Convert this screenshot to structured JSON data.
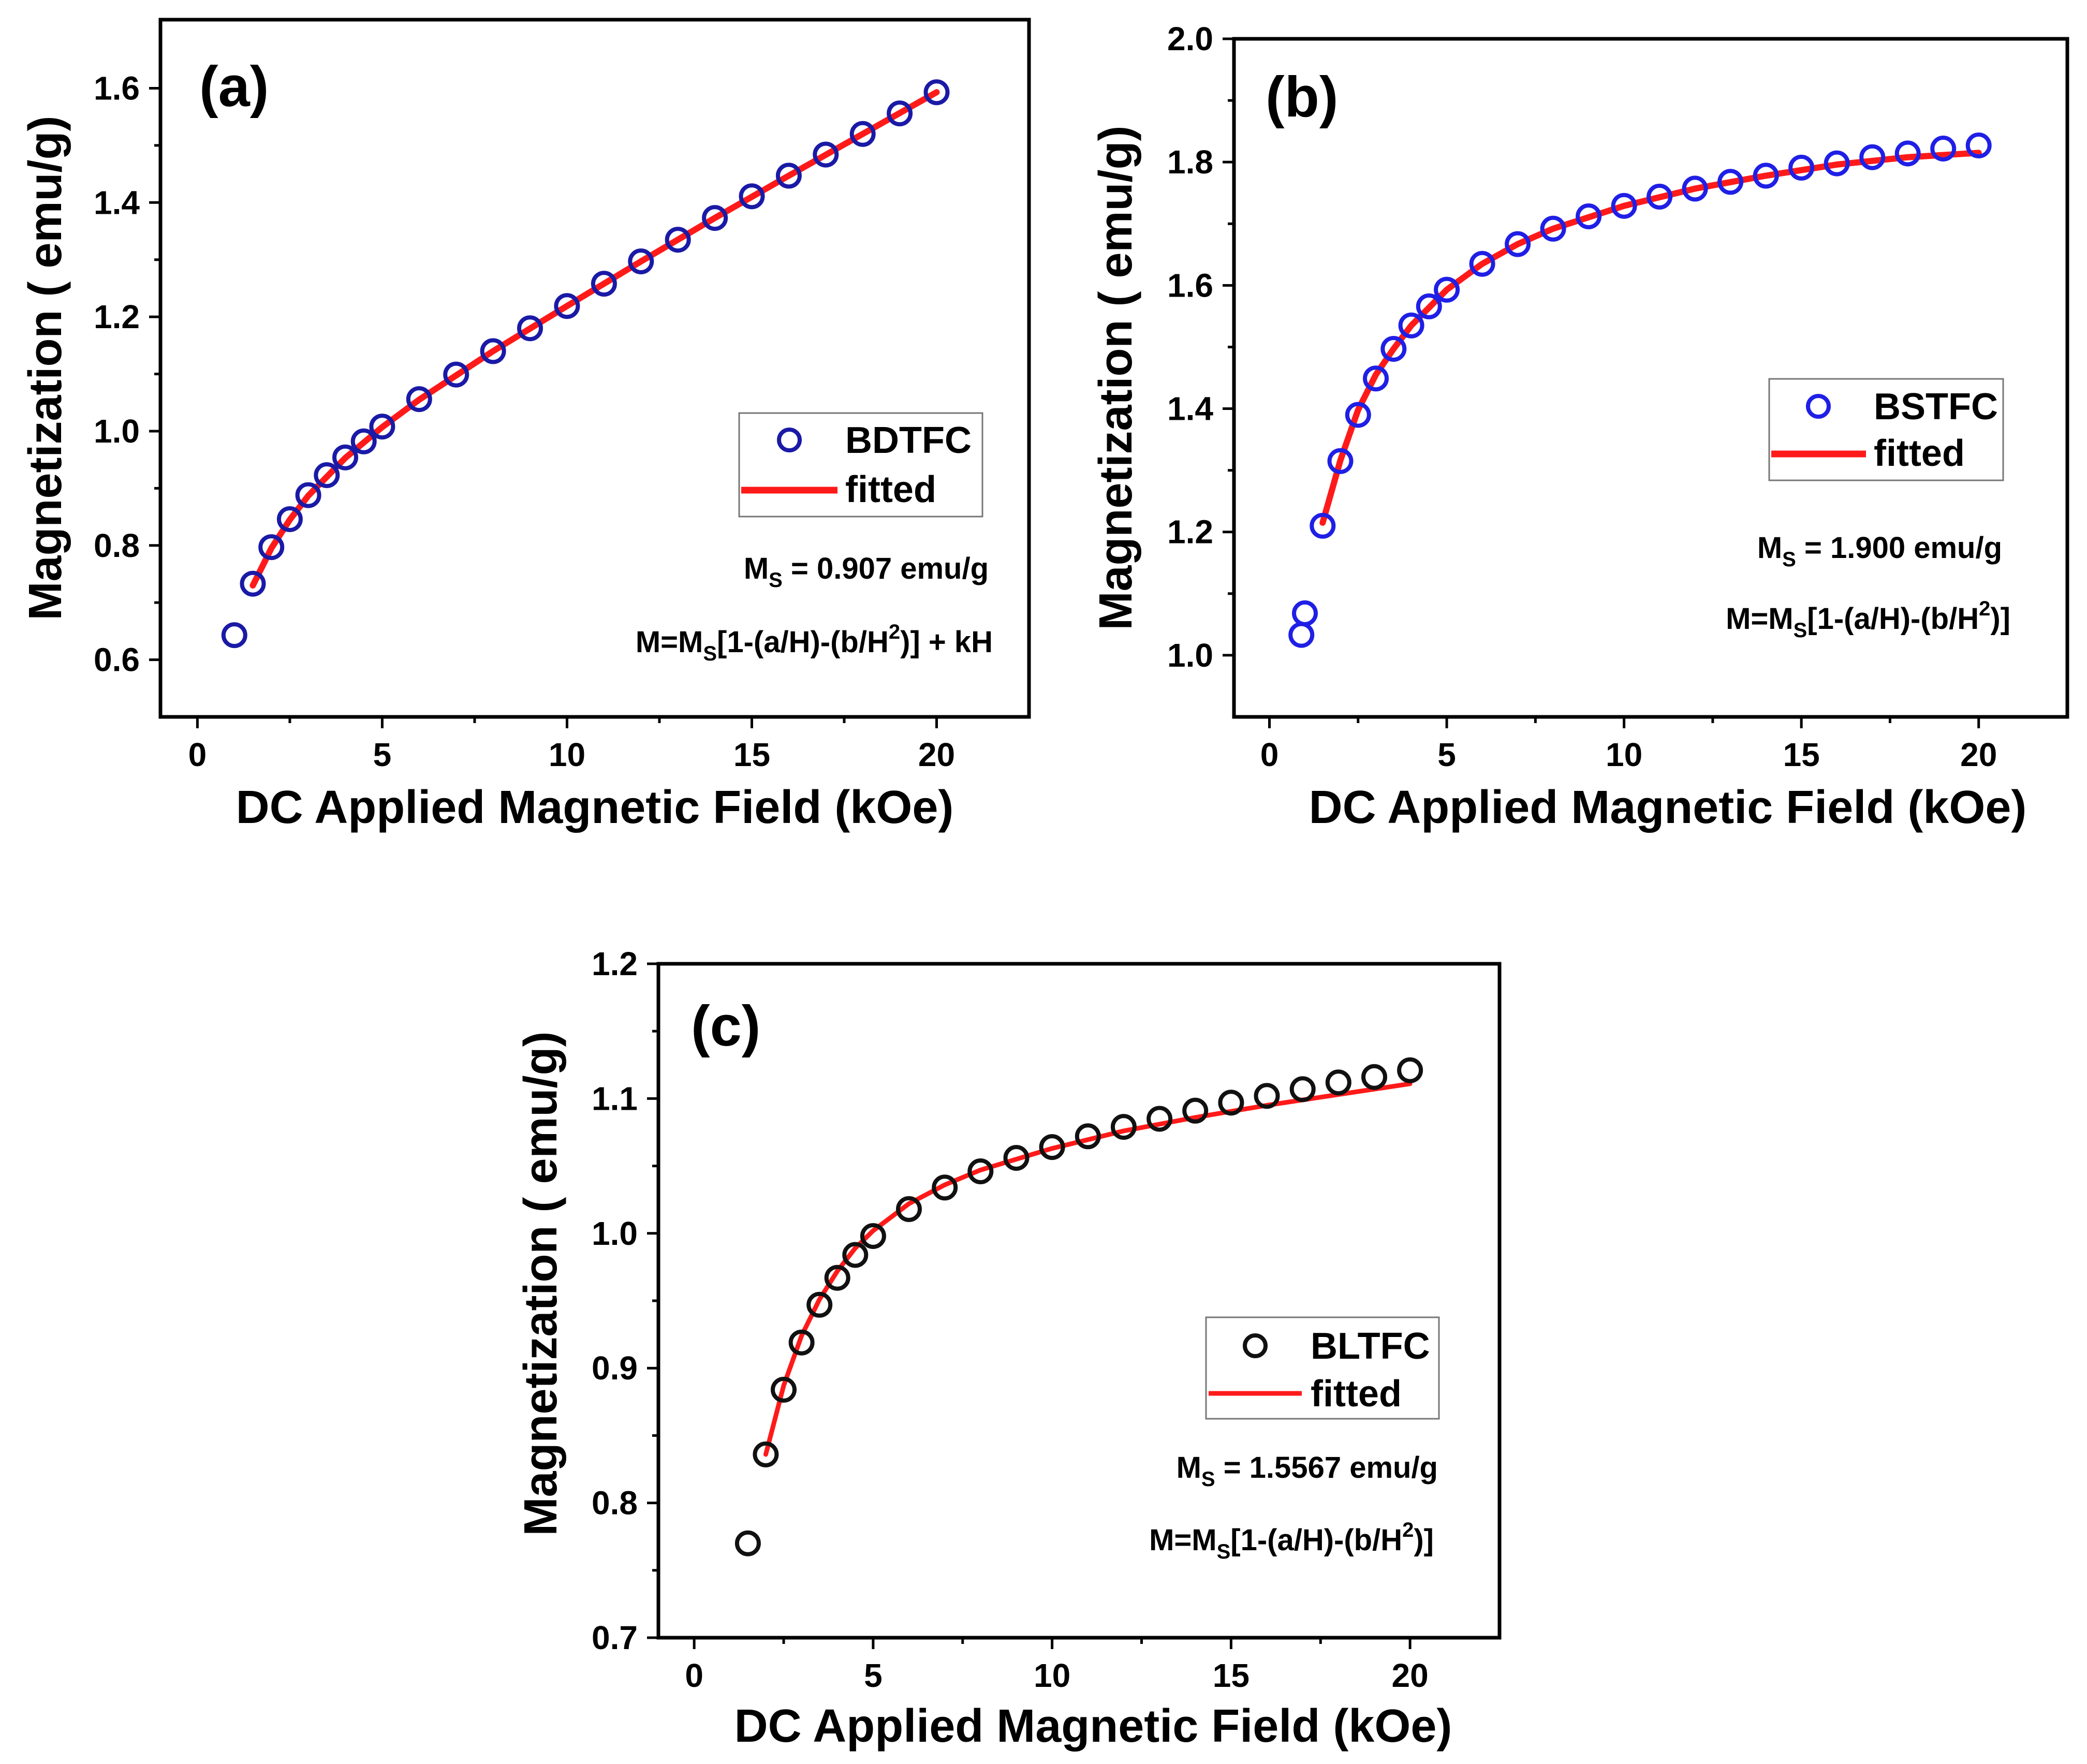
{
  "chart_data": [
    {
      "type": "scatter",
      "panel_label": "(a)",
      "xlabel": "DC Applied Magnetic Field (kOe)",
      "ylabel": "Magnetization ( emu/g)",
      "xlim": [
        -1,
        22.5
      ],
      "ylim": [
        0.5,
        1.72
      ],
      "xticks": [
        0,
        5,
        10,
        15,
        20
      ],
      "xtick_labels": [
        "0",
        "5",
        "10",
        "15",
        "20"
      ],
      "yticks": [
        0.6,
        0.8,
        1.0,
        1.2,
        1.4,
        1.6
      ],
      "ytick_labels": [
        "0.6",
        "0.8",
        "1.0",
        "1.2",
        "1.4",
        "1.6"
      ],
      "marker_color": "#1a1aa6",
      "fit_color": "#ff1a1a",
      "legend": {
        "position": "right",
        "data_label": "BDTFC",
        "fit_label": "fitted"
      },
      "annotation_ms": {
        "prefix": "M",
        "subscript": "S",
        "rest": " = 0.907 emu/g"
      },
      "annotation_eq": {
        "p1": "M=M",
        "sub": "S",
        "p2": "[1-(a/H)-(b/H",
        "sup": "2",
        "p3": ")] + kH"
      },
      "series": [
        {
          "name": "BDTFC",
          "kind": "points",
          "x": [
            1,
            1.5,
            2,
            2.5,
            3,
            3.5,
            4,
            4.5,
            5,
            6,
            7,
            8,
            9,
            10,
            11,
            12,
            13,
            14,
            15,
            16,
            17,
            18,
            19,
            20
          ],
          "y": [
            0.643,
            0.733,
            0.797,
            0.846,
            0.888,
            0.923,
            0.954,
            0.982,
            1.008,
            1.056,
            1.099,
            1.14,
            1.18,
            1.219,
            1.258,
            1.297,
            1.335,
            1.373,
            1.411,
            1.447,
            1.484,
            1.52,
            1.556,
            1.593
          ]
        },
        {
          "name": "fitted",
          "kind": "line",
          "x": [
            1.5,
            2,
            2.5,
            3,
            4,
            5,
            6,
            8,
            10,
            12,
            14,
            16,
            18,
            20
          ],
          "y": [
            0.73,
            0.795,
            0.845,
            0.887,
            0.953,
            1.007,
            1.055,
            1.14,
            1.219,
            1.297,
            1.373,
            1.447,
            1.52,
            1.593
          ]
        }
      ]
    },
    {
      "type": "scatter",
      "panel_label": "(b)",
      "xlabel": "DC Applied Magnetic Field (kOe)",
      "ylabel": "Magnetization ( emu/g)",
      "xlim": [
        -1,
        22.5
      ],
      "ylim": [
        0.9,
        2.0
      ],
      "xticks": [
        0,
        5,
        10,
        15,
        20
      ],
      "xtick_labels": [
        "0",
        "5",
        "10",
        "15",
        "20"
      ],
      "yticks": [
        1.0,
        1.2,
        1.4,
        1.6,
        1.8,
        2.0
      ],
      "ytick_labels": [
        "1.0",
        "1.2",
        "1.4",
        "1.6",
        "1.8",
        "2.0"
      ],
      "marker_color": "#1f1fe6",
      "fit_color": "#ff1a1a",
      "legend": {
        "position": "right",
        "data_label": "BSTFC",
        "fit_label": "fitted"
      },
      "annotation_ms": {
        "prefix": "M",
        "subscript": "S",
        "rest": " = 1.900 emu/g"
      },
      "annotation_eq": {
        "p1": "M=M",
        "sub": "S",
        "p2": "[1-(a/H)-(b/H",
        "sup": "2",
        "p3": ")]"
      },
      "series": [
        {
          "name": "BSTFC",
          "kind": "points",
          "x": [
            0.9,
            1.0,
            1.5,
            2,
            2.5,
            3,
            3.5,
            4,
            4.5,
            5,
            6,
            7,
            8,
            9,
            10,
            11,
            12,
            13,
            14,
            15,
            16,
            17,
            18,
            19,
            20
          ],
          "y": [
            1.033,
            1.068,
            1.21,
            1.315,
            1.39,
            1.449,
            1.497,
            1.535,
            1.566,
            1.593,
            1.635,
            1.667,
            1.692,
            1.712,
            1.729,
            1.744,
            1.757,
            1.768,
            1.778,
            1.791,
            1.798,
            1.808,
            1.814,
            1.822,
            1.827
          ]
        },
        {
          "name": "fitted",
          "kind": "line",
          "x": [
            1.5,
            2,
            2.5,
            3,
            3.5,
            4,
            5,
            6,
            7,
            8,
            10,
            12,
            14,
            16,
            18,
            20
          ],
          "y": [
            1.215,
            1.316,
            1.398,
            1.455,
            1.497,
            1.535,
            1.593,
            1.635,
            1.667,
            1.692,
            1.729,
            1.757,
            1.778,
            1.796,
            1.808,
            1.815
          ]
        }
      ]
    },
    {
      "type": "scatter",
      "panel_label": "(c)",
      "xlabel": "DC Applied Magnetic Field (kOe)",
      "ylabel": "Magnetization ( emu/g)",
      "xlim": [
        -1,
        22.5
      ],
      "ylim": [
        0.7,
        1.2
      ],
      "xticks": [
        0,
        5,
        10,
        15,
        20
      ],
      "xtick_labels": [
        "0",
        "5",
        "10",
        "15",
        "20"
      ],
      "yticks": [
        0.7,
        0.8,
        0.9,
        1.0,
        1.1,
        1.2
      ],
      "ytick_labels": [
        "0.7",
        "0.8",
        "0.9",
        "1.0",
        "1.1",
        "1.2"
      ],
      "marker_color": "#111111",
      "fit_color": "#ff1a1a",
      "legend": {
        "position": "right",
        "data_label": "BLTFC",
        "fit_label": "fitted"
      },
      "annotation_ms": {
        "prefix": "M",
        "subscript": "S",
        "rest": " = 1.5567 emu/g"
      },
      "annotation_eq": {
        "p1": "M=M",
        "sub": "S",
        "p2": "[1-(a/H)-(b/H",
        "sup": "2",
        "p3": ")]"
      },
      "series": [
        {
          "name": "BLTFC",
          "kind": "points",
          "x": [
            1.5,
            2,
            2.5,
            3,
            3.5,
            4,
            4.5,
            5,
            6,
            7,
            8,
            9,
            10,
            11,
            12,
            13,
            14,
            15,
            16,
            17,
            18,
            19,
            20
          ],
          "y": [
            0.77,
            0.836,
            0.884,
            0.919,
            0.947,
            0.967,
            0.984,
            0.998,
            1.018,
            1.034,
            1.046,
            1.056,
            1.064,
            1.072,
            1.079,
            1.085,
            1.091,
            1.097,
            1.102,
            1.107,
            1.112,
            1.116,
            1.121
          ]
        },
        {
          "name": "fitted",
          "kind": "line",
          "x": [
            2,
            2.5,
            3,
            3.5,
            4,
            4.5,
            5,
            6,
            7,
            8,
            10,
            12,
            14,
            16,
            18,
            20
          ],
          "y": [
            0.836,
            0.887,
            0.924,
            0.951,
            0.972,
            0.989,
            1.002,
            1.022,
            1.036,
            1.047,
            1.063,
            1.076,
            1.086,
            1.095,
            1.103,
            1.111
          ]
        }
      ]
    }
  ]
}
